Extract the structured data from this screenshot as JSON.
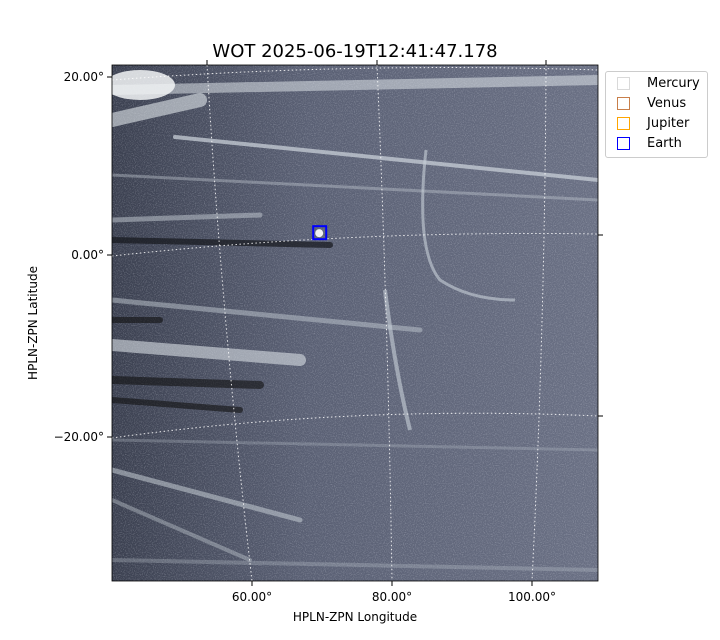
{
  "chart_data": {
    "type": "image",
    "title": "WOT 2025-06-19T12:41:47.178",
    "xlabel": "HPLN-ZPN Longitude",
    "ylabel": "HPLN-ZPN Latitude",
    "x_ticks": [
      "60.00°",
      "80.00°",
      "100.00°"
    ],
    "y_ticks": [
      "20.00°",
      "0.00°",
      "−20.00°"
    ],
    "colormap": "gray-blue",
    "grid": true,
    "legend_position": "outside-top-right",
    "legend": [
      {
        "name": "Mercury",
        "color": "#d9d9d9"
      },
      {
        "name": "Venus",
        "color": "#c87f4a"
      },
      {
        "name": "Jupiter",
        "color": "#ffa500"
      },
      {
        "name": "Earth",
        "color": "#0000ff"
      }
    ],
    "markers": [
      {
        "name": "Earth",
        "lon": 69.6,
        "lat": 2.4,
        "color": "#0000ff"
      }
    ]
  }
}
